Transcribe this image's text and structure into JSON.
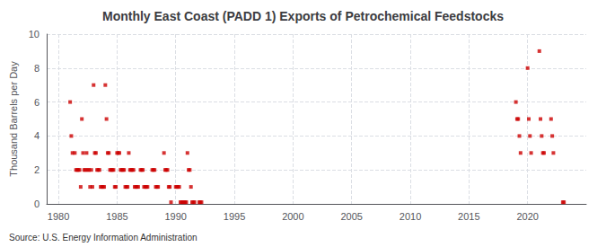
{
  "chart_data": {
    "type": "scatter",
    "title": "Monthly East Coast (PADD 1) Exports of Petrochemical Feedstocks",
    "ylabel": "Thousand Barrels per Day",
    "annotation": "Source: U.S. Energy Information Administration",
    "color": "#cc0000",
    "marker": "square",
    "grid": true,
    "xlim": [
      1979,
      2025
    ],
    "xticks": [
      1980,
      1985,
      1990,
      1995,
      2000,
      2005,
      2010,
      2015,
      2020
    ],
    "ylim": [
      0,
      10
    ],
    "yticks": [
      0,
      2,
      4,
      6,
      8,
      10
    ],
    "x": [
      1981.0,
      1981.1,
      1981.2,
      1981.4,
      1981.5,
      1981.6,
      1981.7,
      1981.8,
      1981.9,
      1982.0,
      1982.1,
      1982.2,
      1982.3,
      1982.4,
      1982.5,
      1982.6,
      1982.7,
      1982.8,
      1982.9,
      1983.0,
      1983.1,
      1983.2,
      1983.3,
      1983.4,
      1983.5,
      1983.6,
      1983.7,
      1983.8,
      1983.9,
      1984.0,
      1984.1,
      1984.2,
      1984.3,
      1984.4,
      1984.5,
      1984.6,
      1984.7,
      1984.8,
      1984.9,
      1985.0,
      1985.1,
      1985.2,
      1985.3,
      1985.4,
      1985.5,
      1985.6,
      1985.7,
      1985.8,
      1985.9,
      1986.0,
      1986.1,
      1986.2,
      1986.3,
      1986.4,
      1986.5,
      1986.6,
      1986.7,
      1986.8,
      1987.0,
      1987.1,
      1987.2,
      1987.3,
      1987.4,
      1987.5,
      1987.6,
      1988.0,
      1988.1,
      1988.2,
      1988.3,
      1988.4,
      1988.5,
      1989.0,
      1989.1,
      1989.2,
      1989.3,
      1989.4,
      1989.5,
      1989.6,
      1990.0,
      1990.1,
      1990.2,
      1990.3,
      1990.4,
      1990.5,
      1990.6,
      1990.7,
      1990.8,
      1990.9,
      1991.0,
      1991.1,
      1991.2,
      1991.3,
      1991.4,
      1991.5,
      1991.6,
      1992.0,
      1992.1,
      1992.2,
      2019.0,
      2019.1,
      2019.2,
      2019.3,
      2019.4,
      2020.0,
      2020.1,
      2020.2,
      2020.3,
      2021.0,
      2021.1,
      2021.2,
      2021.3,
      2021.4,
      2022.0,
      2022.1,
      2022.2,
      2023.0,
      2023.1
    ],
    "values": [
      6.0,
      4.0,
      3.0,
      3.0,
      2.0,
      2.0,
      2.0,
      2.0,
      1.0,
      5.0,
      3.0,
      2.0,
      2.0,
      3.0,
      2.0,
      2.0,
      1.0,
      2.0,
      1.0,
      7.0,
      3.0,
      3.0,
      2.0,
      2.0,
      2.0,
      1.0,
      1.0,
      1.0,
      1.0,
      7.0,
      5.0,
      3.0,
      3.0,
      2.0,
      2.0,
      2.0,
      2.0,
      1.0,
      1.0,
      3.0,
      3.0,
      3.0,
      2.0,
      2.0,
      2.0,
      2.0,
      1.0,
      1.0,
      1.0,
      3.0,
      2.0,
      2.0,
      2.0,
      2.0,
      1.0,
      1.0,
      1.0,
      1.0,
      2.0,
      2.0,
      2.0,
      1.0,
      1.0,
      1.0,
      1.0,
      2.0,
      2.0,
      2.0,
      1.0,
      1.0,
      1.0,
      3.0,
      2.0,
      2.0,
      2.0,
      1.0,
      1.0,
      0.1,
      1.0,
      1.0,
      1.0,
      1.0,
      0.1,
      0.1,
      0.1,
      0.1,
      0.1,
      0.1,
      3.0,
      2.0,
      2.0,
      1.0,
      0.1,
      0.1,
      0.1,
      0.1,
      0.1,
      0.1,
      6.0,
      5.0,
      5.0,
      4.0,
      3.0,
      8.0,
      5.0,
      4.0,
      3.0,
      9.0,
      5.0,
      4.0,
      3.0,
      3.0,
      5.0,
      4.0,
      3.0,
      0.1,
      0.1
    ]
  }
}
